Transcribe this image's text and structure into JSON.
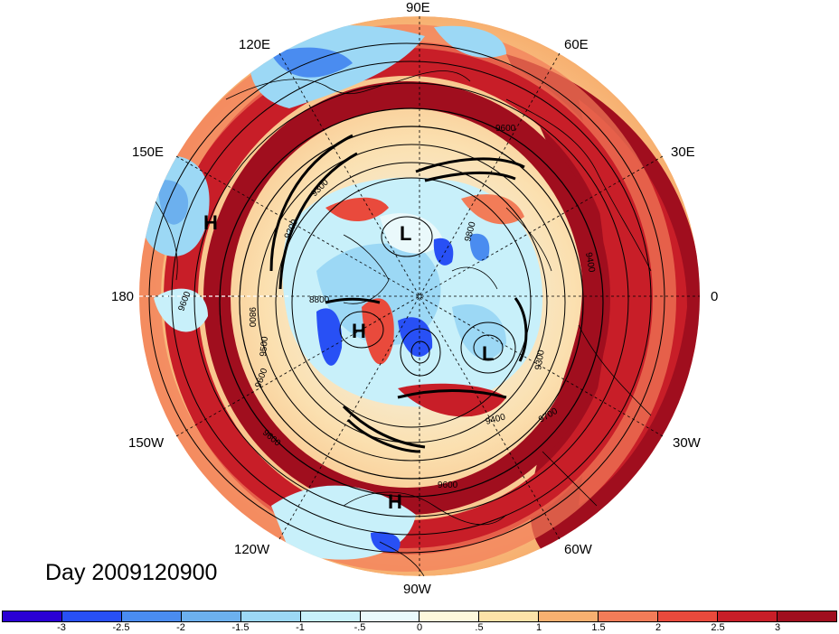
{
  "map": {
    "title": "Day 2009120900",
    "longitude_labels": {
      "lon_90e": "90E",
      "lon_120e": "120E",
      "lon_60e": "60E",
      "lon_150e": "150E",
      "lon_30e": "30E",
      "lon_180": "180",
      "lon_0": "0",
      "lon_150w": "150W",
      "lon_30w": "30W",
      "lon_120w": "120W",
      "lon_60w": "60W",
      "lon_90w": "90W"
    },
    "pressure_centers": [
      "H",
      "H",
      "H",
      "L",
      "L"
    ],
    "contour_labels": [
      "9600",
      "9800",
      "9200",
      "9300",
      "9400",
      "9600",
      "9800",
      "8800",
      "9300",
      "9400",
      "9600",
      "9700",
      "9600",
      "9500",
      "9600"
    ]
  },
  "colorbar": {
    "colors": [
      "#2a00d4",
      "#2850f5",
      "#4a8cf0",
      "#6cb0ee",
      "#9cd8f5",
      "#c8f0fa",
      "#eaf9fb",
      "#fdf8dc",
      "#fce2a8",
      "#f7b070",
      "#f27c58",
      "#e94a3c",
      "#c81e28",
      "#a00e1e"
    ],
    "tick_labels": [
      "-3",
      "-2.5",
      "-2",
      "-1.5",
      "-1",
      "-.5",
      "0",
      ".5",
      "1",
      "1.5",
      "2",
      "2.5",
      "3"
    ]
  }
}
